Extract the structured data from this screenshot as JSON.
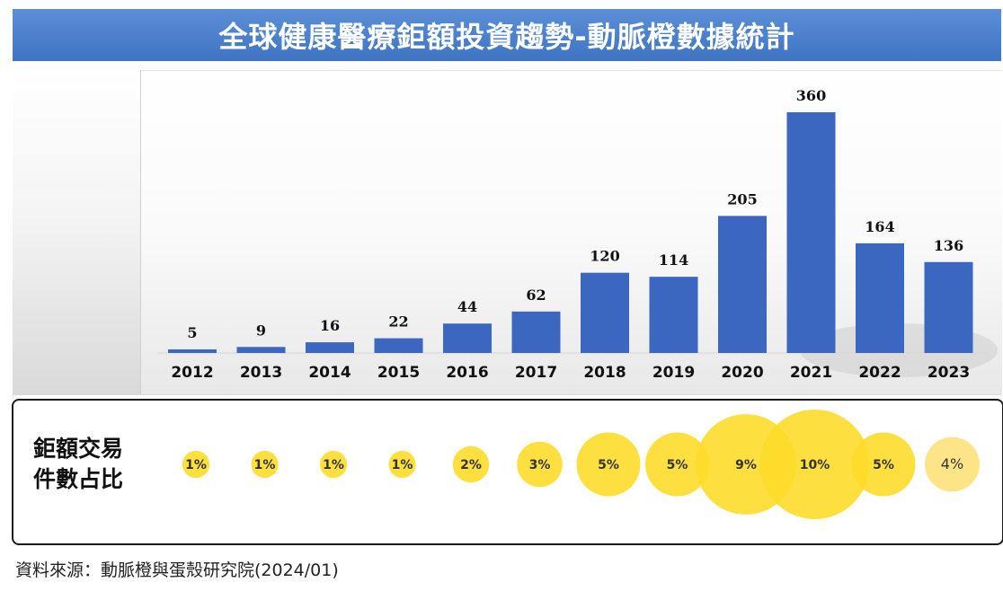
{
  "title": "全球健康醫療鉅額投資趨勢-動脈橙數據統計",
  "ratio_label_line1": "鉅額交易",
  "ratio_label_line2": "件數占比",
  "source": "資料來源：動脈橙與蛋殼研究院(2024/01)",
  "colors": {
    "bar": "#3b67c0",
    "bubble": "#fddc2a",
    "bubble_last": "#fde17a",
    "title_bg": "#4a80cc"
  },
  "chart_data": {
    "type": "bar",
    "title": "全球健康醫療鉅額投資趨勢-動脈橙數據統計",
    "categories": [
      "2012",
      "2013",
      "2014",
      "2015",
      "2016",
      "2017",
      "2018",
      "2019",
      "2020",
      "2021",
      "2022",
      "2023"
    ],
    "values": [
      5,
      9,
      16,
      22,
      44,
      62,
      120,
      114,
      205,
      360,
      164,
      136
    ],
    "ylim": [
      0,
      360
    ],
    "grid": false,
    "data_labels": true,
    "share_row": {
      "label": "鉅額交易件數占比",
      "values": [
        "1%",
        "1%",
        "1%",
        "1%",
        "2%",
        "3%",
        "5%",
        "5%",
        "9%",
        "10%",
        "5%",
        "4%"
      ],
      "percent": [
        1,
        1,
        1,
        1,
        2,
        3,
        5,
        5,
        9,
        10,
        5,
        4
      ]
    }
  }
}
